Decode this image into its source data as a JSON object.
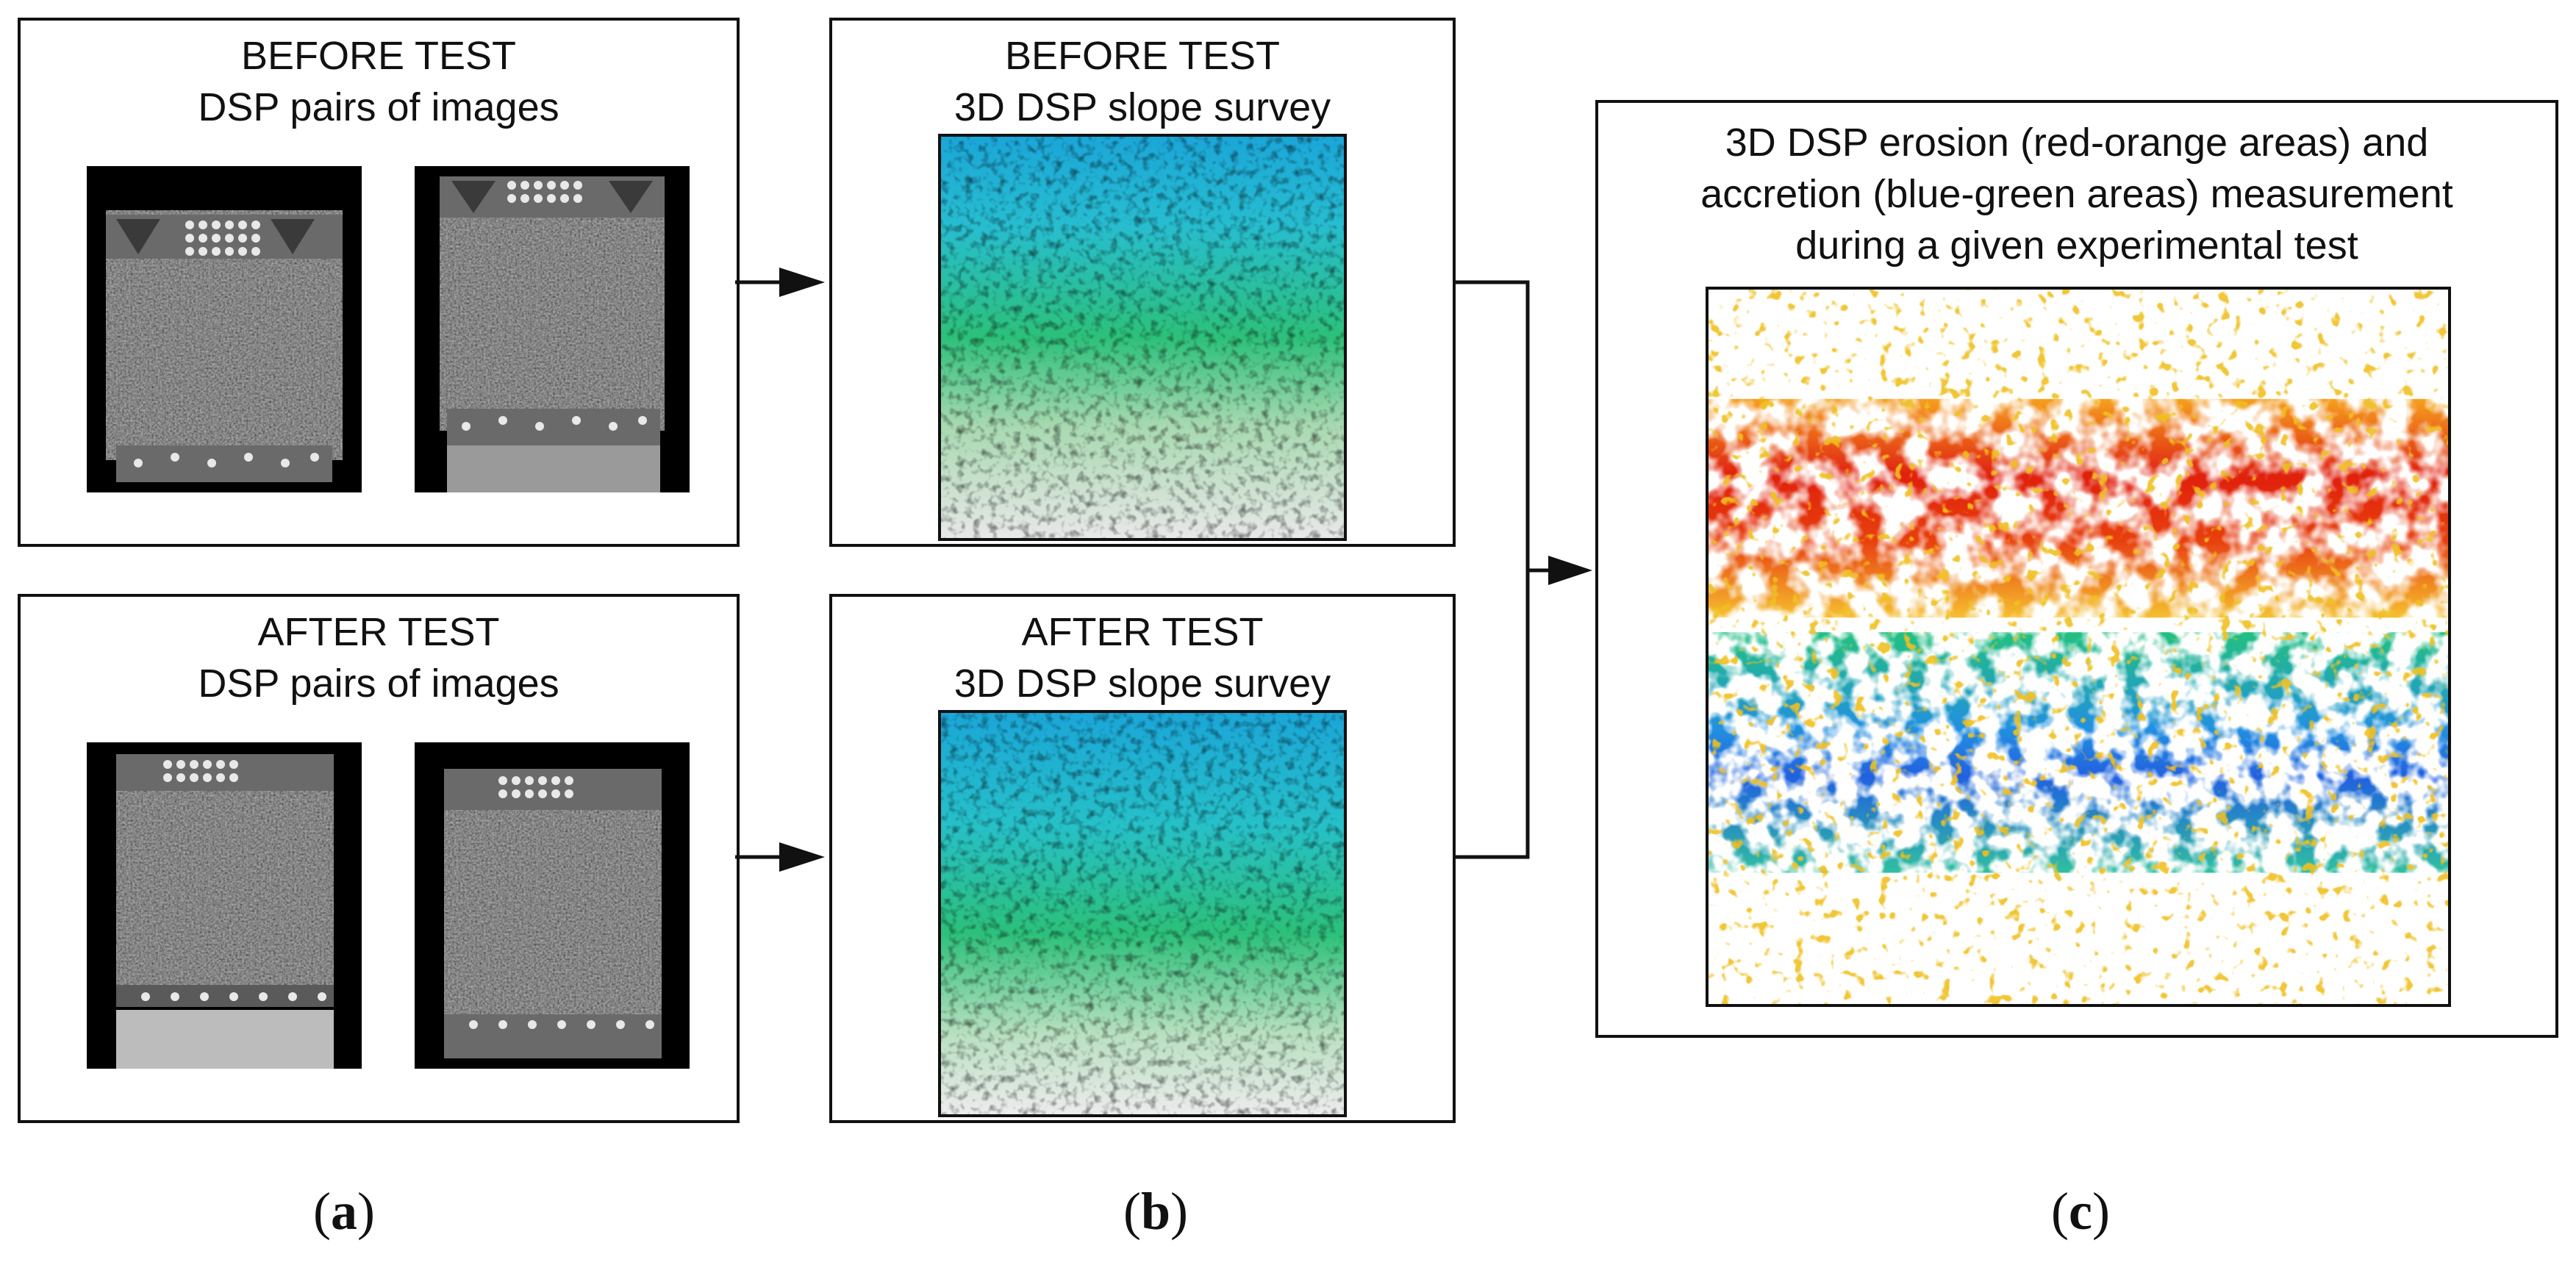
{
  "panel_a_before": {
    "line1": "BEFORE TEST",
    "line2": "DSP pairs of images"
  },
  "panel_a_after": {
    "line1": "AFTER TEST",
    "line2": "DSP pairs of images"
  },
  "panel_b_before": {
    "line1": "BEFORE TEST",
    "line2": "3D DSP slope survey"
  },
  "panel_b_after": {
    "line1": "AFTER TEST",
    "line2": "3D DSP slope survey"
  },
  "panel_c": {
    "line1": "3D DSP erosion (red-orange areas) and",
    "line2": "accretion (blue-green areas) measurement",
    "line3": "during a given experimental test"
  },
  "captions": {
    "a": {
      "open": "(",
      "letter": "a",
      "close": ")"
    },
    "b": {
      "open": "(",
      "letter": "b",
      "close": ")"
    },
    "c": {
      "open": "(",
      "letter": "c",
      "close": ")"
    }
  },
  "colors": {
    "erosion": "#e02010",
    "erosion_light": "#f5a020",
    "accretion": "#20c080",
    "accretion_deep": "#2060e0",
    "peak": "#c040e0",
    "survey_top": "#1ba6d8",
    "survey_mid": "#2cc07a",
    "survey_bottom": "#e8e8e8"
  }
}
